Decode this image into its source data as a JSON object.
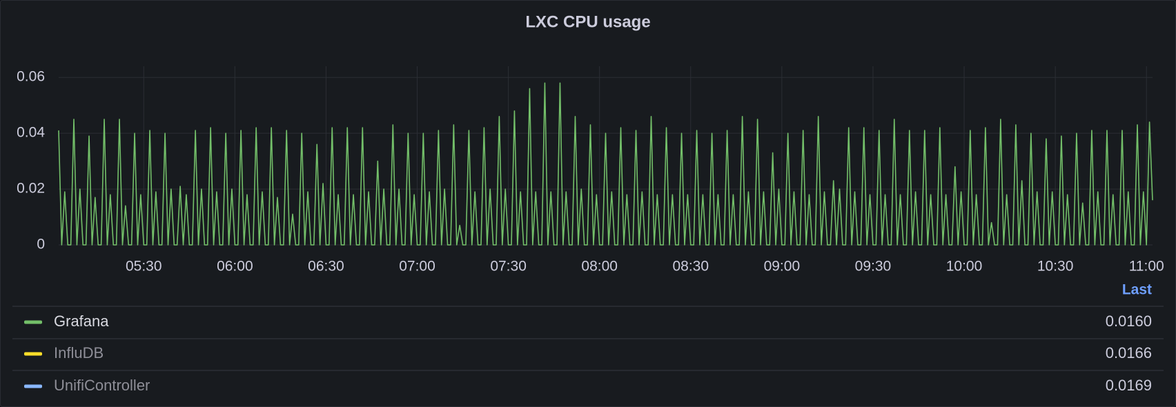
{
  "chart_data": {
    "type": "line",
    "title": "LXC CPU usage",
    "x": [
      "05:02",
      "05:03",
      "05:04",
      "05:05",
      "05:06",
      "05:07",
      "05:08",
      "05:09",
      "05:10",
      "05:11",
      "05:12",
      "05:13",
      "05:14",
      "05:15",
      "05:16",
      "05:17",
      "05:18",
      "05:19",
      "05:20",
      "05:21",
      "05:22",
      "05:23",
      "05:24",
      "05:25",
      "05:26",
      "05:27",
      "05:28",
      "05:29",
      "05:30",
      "05:31",
      "05:32",
      "05:33",
      "05:34",
      "05:35",
      "05:36",
      "05:37",
      "05:38",
      "05:39",
      "05:40",
      "05:41",
      "05:42",
      "05:43",
      "05:44",
      "05:45",
      "05:46",
      "05:47",
      "05:48",
      "05:49",
      "05:50",
      "05:51",
      "05:52",
      "05:53",
      "05:54",
      "05:55",
      "05:56",
      "05:57",
      "05:58",
      "05:59",
      "06:00",
      "06:01",
      "06:02",
      "06:03",
      "06:04",
      "06:05",
      "06:06",
      "06:07",
      "06:08",
      "06:09",
      "06:10",
      "06:11",
      "06:12",
      "06:13",
      "06:14",
      "06:15",
      "06:16",
      "06:17",
      "06:18",
      "06:19",
      "06:20",
      "06:21",
      "06:22",
      "06:23",
      "06:24",
      "06:25",
      "06:26",
      "06:27",
      "06:28",
      "06:29",
      "06:30",
      "06:31",
      "06:32",
      "06:33",
      "06:34",
      "06:35",
      "06:36",
      "06:37",
      "06:38",
      "06:39",
      "06:40",
      "06:41",
      "06:42",
      "06:43",
      "06:44",
      "06:45",
      "06:46",
      "06:47",
      "06:48",
      "06:49",
      "06:50",
      "06:51",
      "06:52",
      "06:53",
      "06:54",
      "06:55",
      "06:56",
      "06:57",
      "06:58",
      "06:59",
      "07:00",
      "07:01",
      "07:02",
      "07:03",
      "07:04",
      "07:05",
      "07:06",
      "07:07",
      "07:08",
      "07:09",
      "07:10",
      "07:11",
      "07:12",
      "07:13",
      "07:14",
      "07:15",
      "07:16",
      "07:17",
      "07:18",
      "07:19",
      "07:20",
      "07:21",
      "07:22",
      "07:23",
      "07:24",
      "07:25",
      "07:26",
      "07:27",
      "07:28",
      "07:29",
      "07:30",
      "07:31",
      "07:32",
      "07:33",
      "07:34",
      "07:35",
      "07:36",
      "07:37",
      "07:38",
      "07:39",
      "07:40",
      "07:41",
      "07:42",
      "07:43",
      "07:44",
      "07:45",
      "07:46",
      "07:47",
      "07:48",
      "07:49",
      "07:50",
      "07:51",
      "07:52",
      "07:53",
      "07:54",
      "07:55",
      "07:56",
      "07:57",
      "07:58",
      "07:59",
      "08:00",
      "08:01",
      "08:02",
      "08:03",
      "08:04",
      "08:05",
      "08:06",
      "08:07",
      "08:08",
      "08:09",
      "08:10",
      "08:11",
      "08:12",
      "08:13",
      "08:14",
      "08:15",
      "08:16",
      "08:17",
      "08:18",
      "08:19",
      "08:20",
      "08:21",
      "08:22",
      "08:23",
      "08:24",
      "08:25",
      "08:26",
      "08:27",
      "08:28",
      "08:29",
      "08:30",
      "08:31",
      "08:32",
      "08:33",
      "08:34",
      "08:35",
      "08:36",
      "08:37",
      "08:38",
      "08:39",
      "08:40",
      "08:41",
      "08:42",
      "08:43",
      "08:44",
      "08:45",
      "08:46",
      "08:47",
      "08:48",
      "08:49",
      "08:50",
      "08:51",
      "08:52",
      "08:53",
      "08:54",
      "08:55",
      "08:56",
      "08:57",
      "08:58",
      "08:59",
      "09:00",
      "09:01",
      "09:02",
      "09:03",
      "09:04",
      "09:05",
      "09:06",
      "09:07",
      "09:08",
      "09:09",
      "09:10",
      "09:11",
      "09:12",
      "09:13",
      "09:14",
      "09:15",
      "09:16",
      "09:17",
      "09:18",
      "09:19",
      "09:20",
      "09:21",
      "09:22",
      "09:23",
      "09:24",
      "09:25",
      "09:26",
      "09:27",
      "09:28",
      "09:29",
      "09:30",
      "09:31",
      "09:32",
      "09:33",
      "09:34",
      "09:35",
      "09:36",
      "09:37",
      "09:38",
      "09:39",
      "09:40",
      "09:41",
      "09:42",
      "09:43",
      "09:44",
      "09:45",
      "09:46",
      "09:47",
      "09:48",
      "09:49",
      "09:50",
      "09:51",
      "09:52",
      "09:53",
      "09:54",
      "09:55",
      "09:56",
      "09:57",
      "09:58",
      "09:59",
      "10:00",
      "10:01",
      "10:02",
      "10:03",
      "10:04",
      "10:05",
      "10:06",
      "10:07",
      "10:08",
      "10:09",
      "10:10",
      "10:11",
      "10:12",
      "10:13",
      "10:14",
      "10:15",
      "10:16",
      "10:17",
      "10:18",
      "10:19",
      "10:20",
      "10:21",
      "10:22",
      "10:23",
      "10:24",
      "10:25",
      "10:26",
      "10:27",
      "10:28",
      "10:29",
      "10:30",
      "10:31",
      "10:32",
      "10:33",
      "10:34",
      "10:35",
      "10:36",
      "10:37",
      "10:38",
      "10:39",
      "10:40",
      "10:41",
      "10:42",
      "10:43",
      "10:44",
      "10:45",
      "10:46",
      "10:47",
      "10:48",
      "10:49",
      "10:50",
      "10:51",
      "10:52",
      "10:53",
      "10:54",
      "10:55",
      "10:56",
      "10:57",
      "10:58",
      "10:59",
      "11:00",
      "11:01",
      "11:02"
    ],
    "series": [
      {
        "name": "Grafana",
        "color": "#73bf69",
        "last": {
          "value": 0.016,
          "label": "0.0160"
        },
        "values": [
          0.041,
          0,
          0.019,
          0,
          0,
          0.045,
          0,
          0.02,
          0,
          0,
          0.039,
          0,
          0.017,
          0,
          0,
          0.045,
          0,
          0.018,
          0,
          0,
          0.045,
          0,
          0.014,
          0,
          0,
          0.04,
          0,
          0.018,
          0,
          0,
          0.041,
          0,
          0.019,
          0,
          0,
          0.04,
          0,
          0.02,
          0,
          0,
          0.021,
          0,
          0.018,
          0,
          0,
          0.041,
          0,
          0.02,
          0,
          0,
          0.042,
          0,
          0.019,
          0,
          0,
          0.04,
          0,
          0.02,
          0,
          0,
          0.041,
          0,
          0.018,
          0,
          0,
          0.042,
          0,
          0.019,
          0,
          0,
          0.042,
          0,
          0.017,
          0,
          0,
          0.041,
          0,
          0.011,
          0,
          0,
          0.04,
          0,
          0.019,
          0,
          0,
          0.036,
          0,
          0.022,
          0,
          0,
          0.042,
          0,
          0.018,
          0,
          0,
          0.042,
          0,
          0.018,
          0,
          0,
          0.042,
          0,
          0.019,
          0,
          0,
          0.03,
          0,
          0.02,
          0,
          0,
          0.043,
          0,
          0.02,
          0,
          0,
          0.04,
          0,
          0.018,
          0,
          0,
          0.04,
          0,
          0.019,
          0,
          0,
          0.041,
          0,
          0.02,
          0,
          0,
          0.043,
          0,
          0.007,
          0,
          0,
          0.041,
          0,
          0.019,
          0,
          0,
          0.042,
          0,
          0.02,
          0,
          0,
          0.046,
          0,
          0.02,
          0,
          0,
          0.048,
          0,
          0.019,
          0,
          0,
          0.056,
          0,
          0.019,
          0,
          0,
          0.058,
          0,
          0.019,
          0,
          0,
          0.058,
          0,
          0.019,
          0,
          0,
          0.046,
          0,
          0.02,
          0,
          0,
          0.043,
          0,
          0.018,
          0,
          0,
          0.04,
          0,
          0.019,
          0,
          0,
          0.042,
          0,
          0.018,
          0,
          0,
          0.041,
          0,
          0.019,
          0,
          0,
          0.046,
          0,
          0.018,
          0,
          0,
          0.042,
          0,
          0.018,
          0,
          0,
          0.04,
          0,
          0.018,
          0,
          0,
          0.041,
          0,
          0.018,
          0,
          0,
          0.04,
          0,
          0.018,
          0,
          0,
          0.041,
          0,
          0.018,
          0,
          0,
          0.046,
          0,
          0.019,
          0,
          0,
          0.045,
          0,
          0.019,
          0,
          0,
          0.033,
          0,
          0.02,
          0,
          0,
          0.04,
          0,
          0.019,
          0,
          0,
          0.041,
          0,
          0.018,
          0,
          0,
          0.046,
          0,
          0.019,
          0,
          0,
          0.023,
          0,
          0.02,
          0,
          0,
          0.042,
          0,
          0.019,
          0,
          0,
          0.042,
          0,
          0.018,
          0,
          0,
          0.041,
          0,
          0.018,
          0,
          0,
          0.045,
          0,
          0.018,
          0,
          0,
          0.041,
          0,
          0.019,
          0,
          0,
          0.041,
          0,
          0.018,
          0,
          0,
          0.042,
          0,
          0.018,
          0,
          0,
          0.028,
          0,
          0.019,
          0,
          0,
          0.041,
          0,
          0.018,
          0,
          0,
          0.042,
          0,
          0.008,
          0,
          0,
          0.045,
          0,
          0.018,
          0,
          0,
          0.043,
          0,
          0.023,
          0,
          0,
          0.04,
          0,
          0.019,
          0,
          0,
          0.038,
          0,
          0.019,
          0,
          0,
          0.039,
          0,
          0.018,
          0,
          0,
          0.04,
          0,
          0.015,
          0,
          0,
          0.041,
          0,
          0.019,
          0,
          0,
          0.041,
          0,
          0.018,
          0,
          0,
          0.041,
          0,
          0.019,
          0,
          0,
          0.043,
          0,
          0.019,
          0,
          0.044,
          0.016
        ]
      },
      {
        "name": "InfluDB",
        "color": "#fade2a",
        "hidden": true,
        "last": {
          "value": 0.0166,
          "label": "0.0166"
        }
      },
      {
        "name": "UnifiController",
        "color": "#8ab8ff",
        "hidden": true,
        "last": {
          "value": 0.0169,
          "label": "0.0169"
        }
      }
    ],
    "legend_header": "Last",
    "xlim": [
      "05:02",
      "11:02"
    ],
    "xticks": [
      "05:30",
      "06:00",
      "06:30",
      "07:00",
      "07:30",
      "08:00",
      "08:30",
      "09:00",
      "09:30",
      "10:00",
      "10:30",
      "11:00"
    ],
    "ylim": [
      0,
      0.064
    ],
    "yticks": [
      0,
      0.02,
      0.04,
      0.06
    ],
    "grid": true
  }
}
